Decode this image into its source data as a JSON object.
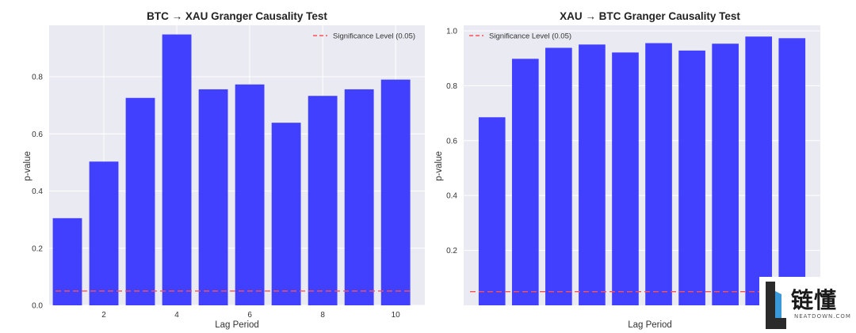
{
  "chart_data": [
    {
      "type": "bar",
      "title": "BTC → XAU Granger Causality Test",
      "xlabel": "Lag Period",
      "ylabel": "p-value",
      "x": [
        1,
        2,
        3,
        4,
        5,
        6,
        7,
        8,
        9,
        10
      ],
      "values": [
        0.305,
        0.503,
        0.726,
        0.948,
        0.756,
        0.773,
        0.639,
        0.733,
        0.756,
        0.79
      ],
      "xticks": [
        2,
        4,
        6,
        8,
        10
      ],
      "yticks": [
        "0.0",
        "0.2",
        "0.4",
        "0.6",
        "0.8"
      ],
      "ylim": [
        0,
        0.98
      ],
      "bar_color": "#3333ff",
      "threshold": {
        "value": 0.05,
        "label": "Significance Level (0.05)",
        "color": "#ff5050"
      },
      "legend_position": "top-right",
      "grid": true
    },
    {
      "type": "bar",
      "title": "XAU → BTC Granger Causality Test",
      "xlabel": "Lag Period",
      "ylabel": "p-value",
      "x": [
        1,
        2,
        3,
        4,
        5,
        6,
        7,
        8,
        9,
        10
      ],
      "values": [
        0.685,
        0.898,
        0.938,
        0.95,
        0.921,
        0.955,
        0.928,
        0.953,
        0.979,
        0.973
      ],
      "xticks": [],
      "yticks": [
        "0.2",
        "0.4",
        "0.6",
        "0.8",
        "1.0"
      ],
      "ylim": [
        0,
        1.02
      ],
      "bar_color": "#3333ff",
      "threshold": {
        "value": 0.05,
        "label": "Significance Level (0.05)",
        "color": "#ff5050"
      },
      "legend_position": "top-left",
      "grid": true
    }
  ],
  "watermark": {
    "cn": "链懂",
    "en": "NEATDOWN.COM"
  }
}
